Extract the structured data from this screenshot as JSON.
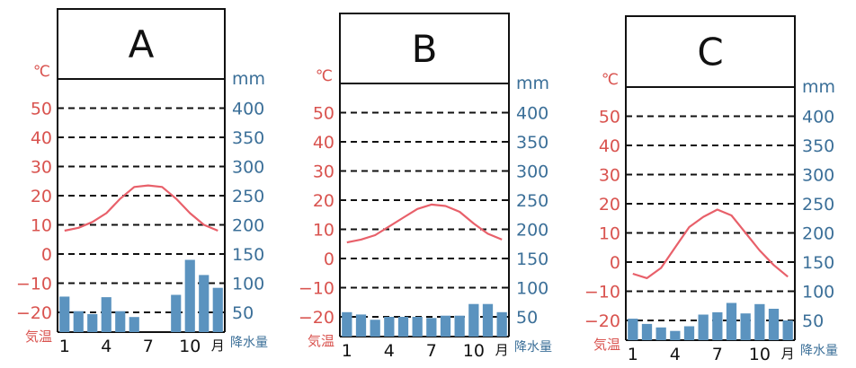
{
  "colors": {
    "temperature": "#e8606a",
    "temperature_text": "#d9534f",
    "precipitation": "#5b93bf",
    "precipitation_text": "#3b6f98",
    "frame": "#111111",
    "grid": "#111111"
  },
  "labels": {
    "temp_unit": "℃",
    "prec_unit": "mm",
    "temp_axis": "気温",
    "prec_axis": "降水量",
    "month_unit": "月"
  },
  "chart_data": [
    {
      "type": "bar+line",
      "title": "A",
      "temperature_ylim": [
        -30,
        60
      ],
      "precipitation_ylim": [
        0,
        450
      ],
      "temperature_ticks": [
        "50",
        "40",
        "30",
        "20",
        "10",
        "0",
        "−10",
        "−20"
      ],
      "precipitation_ticks": [
        "400",
        "350",
        "300",
        "250",
        "200",
        "150",
        "100",
        "50"
      ],
      "months": [
        "1",
        "2",
        "3",
        "4",
        "5",
        "6",
        "7",
        "8",
        "9",
        "10",
        "11",
        "12"
      ],
      "month_tick_labels": [
        "1",
        "4",
        "7",
        "10"
      ],
      "temperature": [
        8,
        9,
        11,
        14,
        19,
        23,
        23.5,
        23,
        19,
        14,
        10,
        8
      ],
      "precipitation": [
        77,
        52,
        47,
        76,
        52,
        42,
        12,
        15,
        80,
        140,
        114,
        92
      ],
      "grid": true
    },
    {
      "type": "bar+line",
      "title": "B",
      "temperature_ylim": [
        -30,
        60
      ],
      "precipitation_ylim": [
        0,
        450
      ],
      "temperature_ticks": [
        "50",
        "40",
        "30",
        "20",
        "10",
        "0",
        "−10",
        "−20"
      ],
      "precipitation_ticks": [
        "400",
        "350",
        "300",
        "250",
        "200",
        "150",
        "100",
        "50"
      ],
      "months": [
        "1",
        "2",
        "3",
        "4",
        "5",
        "6",
        "7",
        "8",
        "9",
        "10",
        "11",
        "12"
      ],
      "month_tick_labels": [
        "1",
        "4",
        "7",
        "10"
      ],
      "temperature": [
        5.5,
        6.5,
        8,
        11,
        14,
        17,
        18.5,
        18,
        16,
        12,
        8.5,
        6.5
      ],
      "precipitation": [
        58,
        54,
        45,
        50,
        50,
        50,
        48,
        52,
        52,
        72,
        72,
        58
      ],
      "grid": true
    },
    {
      "type": "bar+line",
      "title": "C",
      "temperature_ylim": [
        -30,
        60
      ],
      "precipitation_ylim": [
        0,
        450
      ],
      "temperature_ticks": [
        "50",
        "40",
        "30",
        "20",
        "10",
        "0",
        "−10",
        "−20"
      ],
      "precipitation_ticks": [
        "400",
        "350",
        "300",
        "250",
        "200",
        "150",
        "100",
        "50"
      ],
      "months": [
        "1",
        "2",
        "3",
        "4",
        "5",
        "6",
        "7",
        "8",
        "9",
        "10",
        "11",
        "12"
      ],
      "month_tick_labels": [
        "1",
        "4",
        "7",
        "10"
      ],
      "temperature": [
        -4,
        -5.5,
        -2,
        5,
        12,
        15.5,
        18,
        16,
        10,
        4,
        -1,
        -5
      ],
      "precipitation": [
        53,
        44,
        38,
        32,
        40,
        60,
        64,
        80,
        62,
        78,
        70,
        50
      ],
      "grid": true
    }
  ]
}
